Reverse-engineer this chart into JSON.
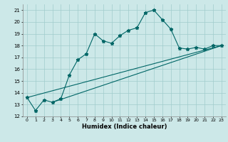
{
  "xlabel": "Humidex (Indice chaleur)",
  "xlim": [
    -0.5,
    23.5
  ],
  "ylim": [
    12,
    21.5
  ],
  "xticks": [
    0,
    1,
    2,
    3,
    4,
    5,
    6,
    7,
    8,
    9,
    10,
    11,
    12,
    13,
    14,
    15,
    16,
    17,
    18,
    19,
    20,
    21,
    22,
    23
  ],
  "yticks": [
    12,
    13,
    14,
    15,
    16,
    17,
    18,
    19,
    20,
    21
  ],
  "bg_color": "#cce8e8",
  "grid_color": "#a0cccc",
  "line_color": "#006666",
  "curve_x": [
    0,
    1,
    2,
    3,
    4,
    5,
    6,
    7,
    8,
    9,
    10,
    11,
    12,
    13,
    14,
    15,
    16,
    17,
    18,
    19,
    20,
    21,
    22,
    23
  ],
  "curve_y": [
    13.6,
    12.5,
    13.4,
    13.2,
    13.5,
    15.5,
    16.8,
    17.3,
    19.0,
    18.4,
    18.2,
    18.85,
    19.3,
    19.5,
    20.8,
    21.0,
    20.2,
    19.4,
    17.8,
    17.7,
    17.85,
    17.7,
    18.0,
    18.0
  ],
  "line1_x": [
    0,
    23
  ],
  "line1_y": [
    13.6,
    18.0
  ],
  "line2_x": [
    3,
    23
  ],
  "line2_y": [
    13.2,
    18.0
  ]
}
